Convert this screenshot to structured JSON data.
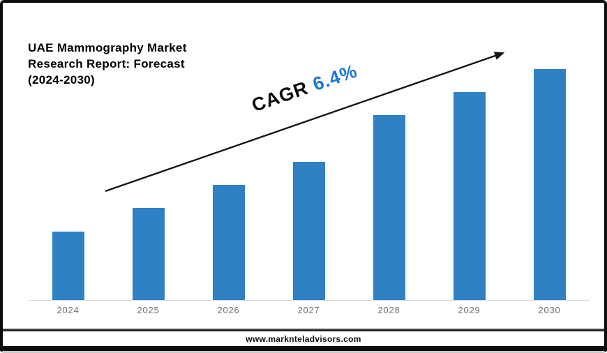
{
  "header": {
    "title_lines": [
      "UAE Mammography Market",
      "Research Report: Forecast",
      "(2024-2030)"
    ]
  },
  "annotation": {
    "label": "CAGR",
    "value": "6.4%",
    "label_color": "#0b0b0b",
    "value_color": "#1e78d4",
    "arrow_color": "#141414"
  },
  "chart_data": {
    "type": "bar",
    "title": "UAE Mammography Market Research Report: Forecast (2024-2030)",
    "categories": [
      "2024",
      "2025",
      "2026",
      "2027",
      "2028",
      "2029",
      "2030"
    ],
    "values": [
      29.6,
      39.9,
      49.8,
      59.8,
      80.1,
      90.0,
      100.0
    ],
    "values_note": "no numeric y-axis shown; values are relative bar heights with 2030 = 100",
    "annotation": "CAGR 6.4%",
    "xlabel": "",
    "ylabel": "",
    "legend": "none",
    "grid": false,
    "bar_color": "#2e81c4",
    "axis_line_color": "#d9d9d9",
    "tick_label_color": "#6e6e6e"
  },
  "footer": {
    "url": "www.marknteladvisors.com"
  }
}
